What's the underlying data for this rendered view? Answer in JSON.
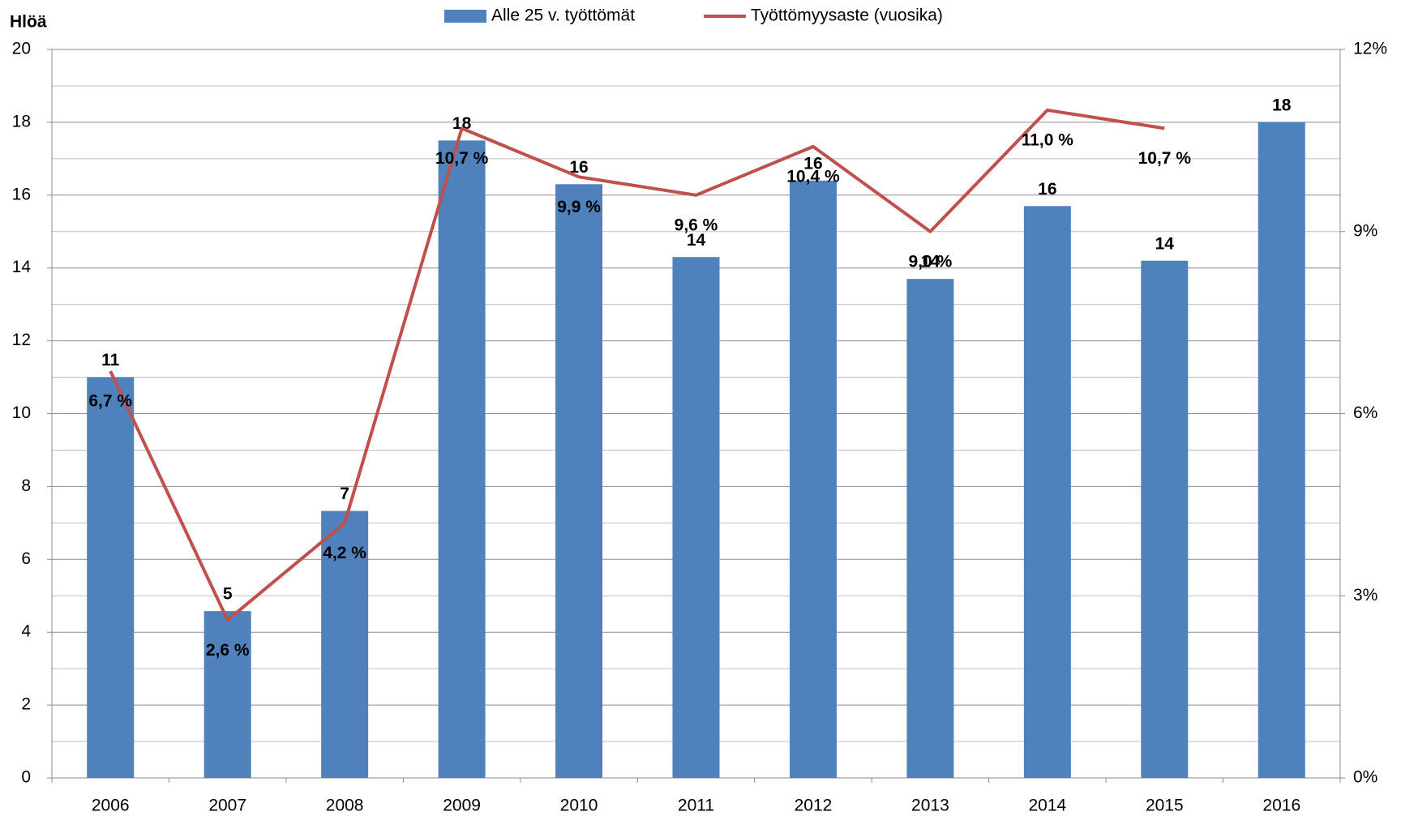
{
  "chart_data": {
    "type": "bar-line",
    "y_axis_label": "Hlöä",
    "categories": [
      "2006",
      "2007",
      "2008",
      "2009",
      "2010",
      "2011",
      "2012",
      "2013",
      "2014",
      "2015",
      "2016"
    ],
    "series": [
      {
        "name": "Alle 25 v. työttömät",
        "type": "bar",
        "color": "#4f81bd",
        "values": [
          11.0,
          4.58,
          7.33,
          17.5,
          16.3,
          14.3,
          16.4,
          13.7,
          15.7,
          14.2,
          18.0
        ],
        "value_labels": [
          "11",
          "5",
          "7",
          "18",
          "16",
          "14",
          "16",
          "14",
          "16",
          "14",
          "18"
        ]
      },
      {
        "name": "Työttömyysaste (vuosika)",
        "type": "line",
        "axis": "y2",
        "color": "#c0504d",
        "values": [
          6.7,
          2.6,
          4.2,
          10.7,
          9.9,
          9.6,
          10.4,
          9.0,
          11.0,
          10.7,
          null
        ],
        "value_labels": [
          "6,7 %",
          "2,6 %",
          "4,2 %",
          "10,7 %",
          "9,9 %",
          "9,6 %",
          "10,4 %",
          "9,0 %",
          "11,0 %",
          "10,7 %",
          null
        ]
      }
    ],
    "ylim": [
      0,
      20
    ],
    "yticks": [
      0,
      2,
      4,
      6,
      8,
      10,
      12,
      14,
      16,
      18,
      20
    ],
    "yminorticks": [
      1,
      3,
      5,
      7,
      9,
      11,
      13,
      15,
      17,
      19
    ],
    "y2lim": [
      0,
      12
    ],
    "y2ticks": [
      {
        "value": 0,
        "label": "0%"
      },
      {
        "value": 3,
        "label": "3%"
      },
      {
        "value": 6,
        "label": "6%"
      },
      {
        "value": 9,
        "label": "9%"
      },
      {
        "value": 12,
        "label": "12%"
      }
    ],
    "grid": true,
    "legend": "top"
  }
}
